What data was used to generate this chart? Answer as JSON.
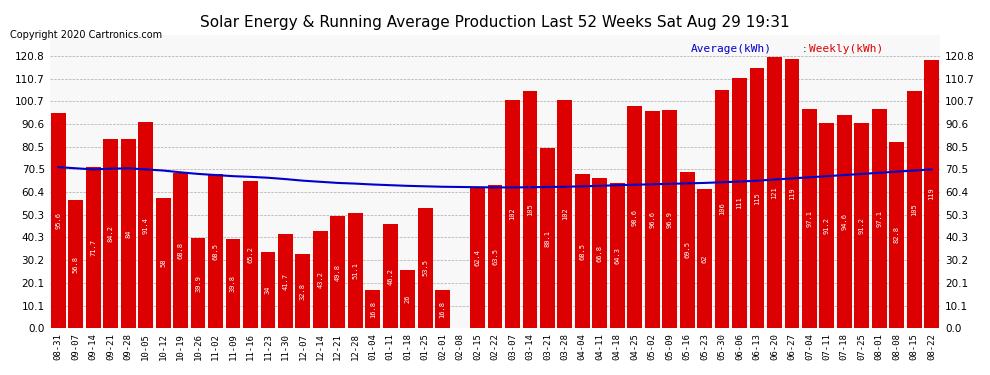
{
  "title": "Solar Energy & Running Average Production Last 52 Weeks Sat Aug 29 19:31",
  "copyright": "Copyright 2020 Cartronics.com",
  "legend_avg": "Average(kWh)",
  "legend_weekly": "Weekly(kWh)",
  "bar_color": "#dd0000",
  "avg_line_color": "#0000cc",
  "background_color": "#ffffff",
  "plot_bg_color": "#f8f8f8",
  "ylim": [
    0.0,
    130.0
  ],
  "yticks": [
    0.0,
    10.1,
    20.1,
    30.2,
    40.3,
    50.3,
    60.4,
    70.5,
    80.5,
    90.6,
    100.7,
    110.7,
    120.8
  ],
  "categories": [
    "08-31",
    "09-07",
    "09-14",
    "09-21",
    "09-28",
    "10-05",
    "10-12",
    "10-19",
    "10-26",
    "11-02",
    "11-09",
    "11-16",
    "11-23",
    "11-30",
    "12-07",
    "12-14",
    "12-21",
    "12-28",
    "01-04",
    "01-11",
    "01-18",
    "01-25",
    "02-01",
    "02-08",
    "02-15",
    "02-22",
    "03-07",
    "03-14",
    "03-21",
    "03-28",
    "04-04",
    "04-11",
    "04-18",
    "04-25",
    "05-02",
    "05-09",
    "05-16",
    "05-23",
    "05-30",
    "06-06",
    "06-13",
    "06-20",
    "06-27",
    "07-04",
    "07-11",
    "07-18",
    "07-25",
    "08-01",
    "08-08",
    "08-15",
    "08-22"
  ],
  "weekly_values": [
    95.6,
    56.8,
    71.7,
    84.2,
    84.0,
    91.4,
    58.0,
    68.8,
    39.9,
    68.5,
    39.8,
    65.2,
    34.0,
    41.7,
    32.8,
    43.2,
    49.8,
    51.1,
    16.8,
    46.2,
    26.0,
    53.5,
    16.8,
    0.096,
    62.4,
    63.5,
    101.5,
    105.1,
    80.1,
    101.5,
    68.5,
    66.8,
    64.3,
    98.6,
    96.6,
    96.9,
    69.5,
    62.0,
    105.9,
    111.2,
    115.3,
    120.6,
    119.3,
    97.1,
    91.2,
    94.6,
    91.2,
    97.1,
    82.8,
    105.4,
    119.2
  ],
  "avg_values": [
    71.5,
    71.0,
    70.5,
    70.8,
    71.0,
    70.5,
    70.0,
    69.2,
    68.5,
    68.0,
    67.5,
    67.2,
    66.8,
    66.2,
    65.5,
    65.0,
    64.5,
    64.2,
    63.8,
    63.5,
    63.2,
    63.0,
    62.8,
    62.7,
    62.6,
    62.5,
    62.5,
    62.6,
    62.7,
    62.8,
    63.0,
    63.2,
    63.5,
    63.7,
    63.9,
    64.1,
    64.3,
    64.5,
    64.8,
    65.1,
    65.5,
    66.0,
    66.5,
    67.0,
    67.5,
    68.0,
    68.5,
    69.0,
    69.5,
    70.0,
    70.5
  ]
}
